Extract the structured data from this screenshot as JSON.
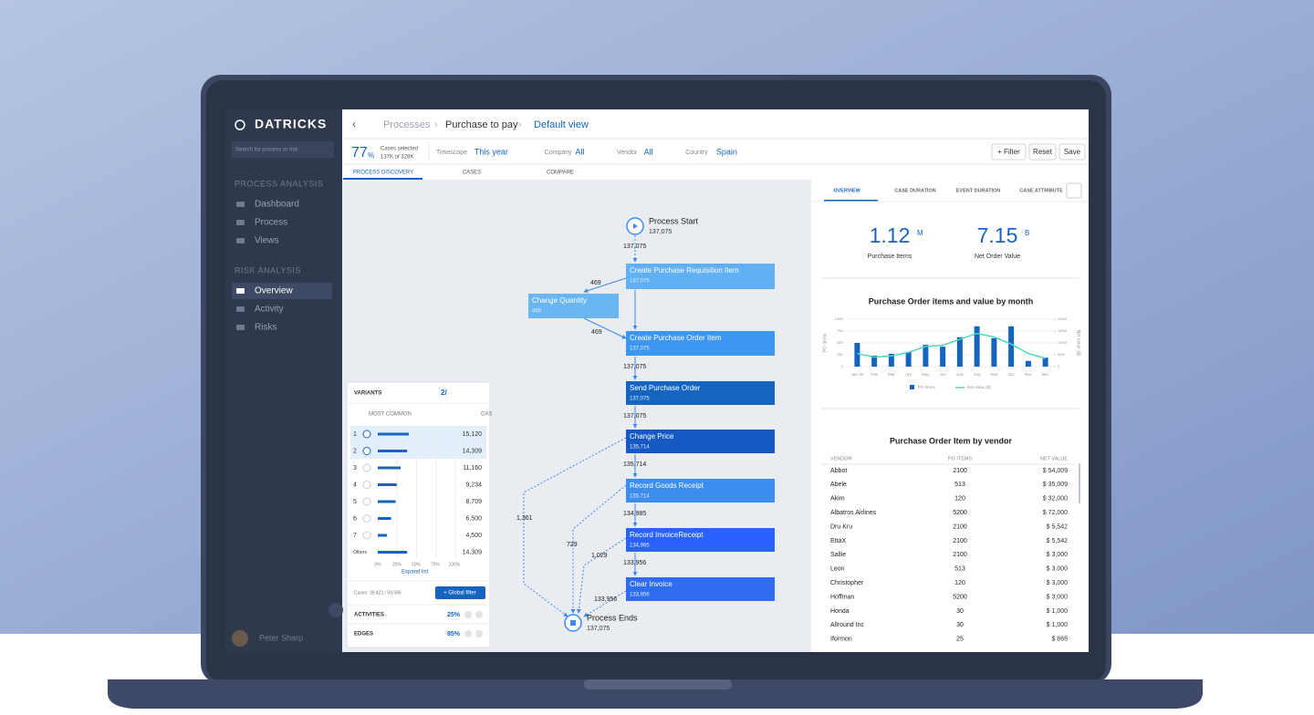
{
  "sidebar": {
    "brand": "DATRICKS",
    "search_placeholder": "Search for process or risk",
    "sections": [
      {
        "title": "PROCESS ANALYSIS",
        "items": [
          "Dashboard",
          "Process",
          "Views"
        ]
      },
      {
        "title": "RISK ANALYSIS",
        "items": [
          "Overview",
          "Activity",
          "Risks"
        ]
      }
    ],
    "user": "Peter Sharp"
  },
  "header": {
    "breadcrumb": [
      "Processes",
      "Purchase to pay",
      "Default view"
    ]
  },
  "filters": {
    "cases_pct": "77",
    "cases_unit": "%",
    "cases_label": "Cases selected",
    "cases_detail": "137K of 328K",
    "items": [
      {
        "label": "Timescope",
        "value": "This year"
      },
      {
        "label": "Company",
        "value": "All"
      },
      {
        "label": "Vendor",
        "value": "All"
      },
      {
        "label": "Country",
        "value": "Spain"
      }
    ],
    "buttons": [
      "+ Filter",
      "Reset",
      "Save"
    ]
  },
  "tabs": [
    "PROCESS DISCOVERY",
    "CASES",
    "COMPARE"
  ],
  "process_map": {
    "start": {
      "label": "Process Start",
      "count": "137,075"
    },
    "end": {
      "label": "Process Ends",
      "count": "137,075"
    },
    "nodes": [
      {
        "label": "Create Purchase Requisition Item",
        "count": "137,075"
      },
      {
        "label": "Change Quantity",
        "count": "469"
      },
      {
        "label": "Create Purchase Order Item",
        "count": "137,075"
      },
      {
        "label": "Send Purchase Order",
        "count": "137,075"
      },
      {
        "label": "Change Price",
        "count": "135,714"
      },
      {
        "label": "Record Goods Receipt",
        "count": "135,714"
      },
      {
        "label": "Record InvoiceReceipt",
        "count": "134,985"
      },
      {
        "label": "Clear Invoice",
        "count": "133,956"
      }
    ],
    "edge_labels": [
      "137,075",
      "469",
      "469",
      "137,075",
      "137,075",
      "135,714",
      "134,985",
      "133,956",
      "1,361",
      "729",
      "1,029",
      "133,956"
    ]
  },
  "variants": {
    "title": "VARIANTS",
    "counter": "2/",
    "sort": "MOST COMMON",
    "column": "CAS",
    "ids": [
      "1",
      "2",
      "3",
      "4",
      "5",
      "6",
      "7",
      "Others"
    ],
    "values": [
      15120,
      14309,
      11160,
      9234,
      8709,
      6500,
      4500,
      14309
    ],
    "value_labels": [
      "15,120",
      "14,309",
      "11,160",
      "9,234",
      "8,709",
      "6,500",
      "4,500",
      "14,309"
    ],
    "axis": [
      "0%",
      "25%",
      "50%",
      "75%",
      "100%"
    ],
    "expand": "Expand list",
    "cases": "Cases: 39,421 / 59,585",
    "button": "+ Global filter",
    "activities": {
      "label": "ACTIVITIES",
      "value": "25%"
    },
    "edges": {
      "label": "EDGES",
      "value": "85%"
    }
  },
  "right_panel": {
    "tabs": [
      "OVERVIEW",
      "CASE DURATION",
      "EVENT DURATION",
      "CASE ATTRIBUTE"
    ],
    "kpis": [
      {
        "value": "1.12",
        "unit": "M",
        "label": "Purchase Items"
      },
      {
        "value": "7.15",
        "unit": "B",
        "label": "Net Order Value"
      }
    ],
    "chart": {
      "type": "bar",
      "title": "Purchase Order items and value by month",
      "ylabel": "PO Items",
      "y2label": "Net value ($)",
      "categories": [
        "Jan 20",
        "Feb",
        "Mar",
        "Apr",
        "May",
        "Jun",
        "July",
        "Aug",
        "Sep",
        "Oct",
        "Nov",
        "Dec"
      ],
      "series": [
        {
          "name": "PO Items",
          "type": "bar",
          "color": "#1565c0",
          "values": [
            50000,
            23000,
            27000,
            31000,
            46000,
            42000,
            62000,
            85000,
            60000,
            85000,
            12000,
            19000
          ]
        },
        {
          "name": "Net value ($)",
          "type": "line",
          "axis": "y2",
          "color": "#4dd9b8",
          "values": [
            55000000,
            40000000,
            45000000,
            60000000,
            85000000,
            90000000,
            115000000,
            140000000,
            125000000,
            95000000,
            55000000,
            35000000
          ]
        }
      ],
      "ylim": [
        0,
        100000
      ],
      "yticks": [
        0,
        {
          "value": 25000,
          "label": "25K"
        },
        {
          "value": 50000,
          "label": "50K"
        },
        {
          "value": 75000,
          "label": "75K"
        },
        {
          "value": 100000,
          "label": "100K"
        }
      ],
      "y2lim": [
        0,
        200000000
      ],
      "y2ticks": [
        0,
        {
          "value": 50000000,
          "label": "50M"
        },
        {
          "value": 100000000,
          "label": "100M"
        },
        {
          "value": 150000000,
          "label": "150M"
        },
        {
          "value": 200000000,
          "label": "200M"
        }
      ]
    },
    "vendor_table": {
      "title": "Purchase Order Item by vendor",
      "columns": [
        "VENDOR",
        "PO ITEMS",
        "NET VALUE"
      ],
      "rows": [
        [
          "Abbot",
          "2100",
          "$ 54,009"
        ],
        [
          "Abele",
          "513",
          "$ 35,009"
        ],
        [
          "Akim",
          "120",
          "$ 32,000"
        ],
        [
          "Albatros Airlines",
          "5200",
          "$ 72,000"
        ],
        [
          "Dru Kru",
          "2100",
          "$ 5,542"
        ],
        [
          "EttaX",
          "2100",
          "$ 5,542"
        ],
        [
          "Sallie",
          "2100",
          "$ 3,000"
        ],
        [
          "Leon",
          "513",
          "$ 3,000"
        ],
        [
          "Christopher",
          "120",
          "$ 3,000"
        ],
        [
          "Hoffman",
          "5200",
          "$ 3,000"
        ],
        [
          "Honda",
          "30",
          "$ 1,000"
        ],
        [
          "Allround Inc",
          "30",
          "$ 1,000"
        ],
        [
          "Iformon",
          "25",
          "$ 865"
        ]
      ]
    }
  }
}
